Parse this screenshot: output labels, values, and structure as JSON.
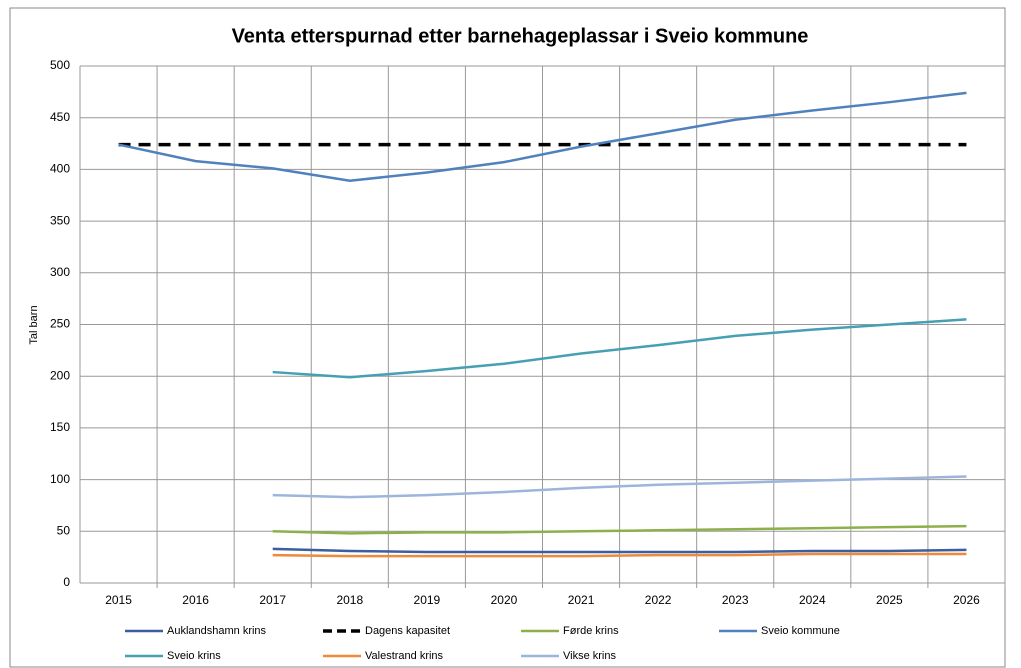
{
  "chart_data": {
    "type": "line",
    "title": "Venta etterspurnad etter barnehageplassar i Sveio kommune",
    "y_label": "Tal barn",
    "categories": [
      "2015",
      "2016",
      "2017",
      "2018",
      "2019",
      "2020",
      "2021",
      "2022",
      "2023",
      "2024",
      "2025",
      "2026"
    ],
    "ylim": [
      0,
      500
    ],
    "yticks": [
      0,
      50,
      100,
      150,
      200,
      250,
      300,
      350,
      400,
      450,
      500
    ],
    "grid": true,
    "legend": "bottom",
    "series": [
      {
        "name": "Auklandshamn krins",
        "color": "#3b5f9e",
        "values": [
          null,
          null,
          33,
          31,
          30,
          30,
          30,
          30,
          30,
          31,
          31,
          32
        ]
      },
      {
        "name": "Dagens kapasitet",
        "color": "#000000",
        "dashed": true,
        "values": [
          424,
          424,
          424,
          424,
          424,
          424,
          424,
          424,
          424,
          424,
          424,
          424
        ]
      },
      {
        "name": "Førde krins",
        "color": "#8db04b",
        "values": [
          null,
          null,
          50,
          48,
          49,
          49,
          50,
          51,
          52,
          53,
          54,
          55
        ]
      },
      {
        "name": "Sveio kommune",
        "color": "#4f81bd",
        "values": [
          424,
          408,
          401,
          389,
          397,
          407,
          422,
          435,
          448,
          457,
          465,
          474
        ]
      },
      {
        "name": "Sveio krins",
        "color": "#46a0b4",
        "values": [
          null,
          null,
          204,
          199,
          205,
          212,
          222,
          230,
          239,
          245,
          250,
          255
        ]
      },
      {
        "name": "Valestrand krins",
        "color": "#ed8a3c",
        "values": [
          null,
          null,
          27,
          26,
          26,
          26,
          26,
          27,
          27,
          28,
          28,
          28
        ]
      },
      {
        "name": "Vikse krins",
        "color": "#9db4dc",
        "values": [
          null,
          null,
          85,
          83,
          85,
          88,
          92,
          95,
          97,
          99,
          101,
          103
        ]
      }
    ]
  }
}
